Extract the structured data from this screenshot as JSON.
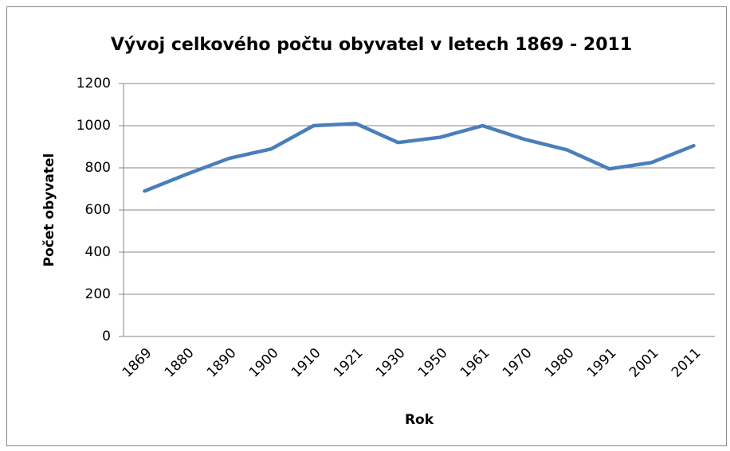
{
  "chart_data": {
    "type": "line",
    "title": "Vývoj celkového počtu obyvatel v letech 1869 - 2011",
    "x_label": "Rok",
    "y_label": "Počet obyvatel",
    "categories": [
      "1869",
      "1880",
      "1890",
      "1900",
      "1910",
      "1921",
      "1930",
      "1950",
      "1961",
      "1970",
      "1980",
      "1991",
      "2001",
      "2011"
    ],
    "values": [
      690,
      770,
      845,
      890,
      1000,
      1010,
      920,
      945,
      1000,
      935,
      885,
      795,
      825,
      905
    ],
    "color": "#4a7ebb",
    "ylim": [
      0,
      1200
    ],
    "yticks": [
      0,
      200,
      400,
      600,
      800,
      1000,
      1200
    ],
    "grid": true
  }
}
